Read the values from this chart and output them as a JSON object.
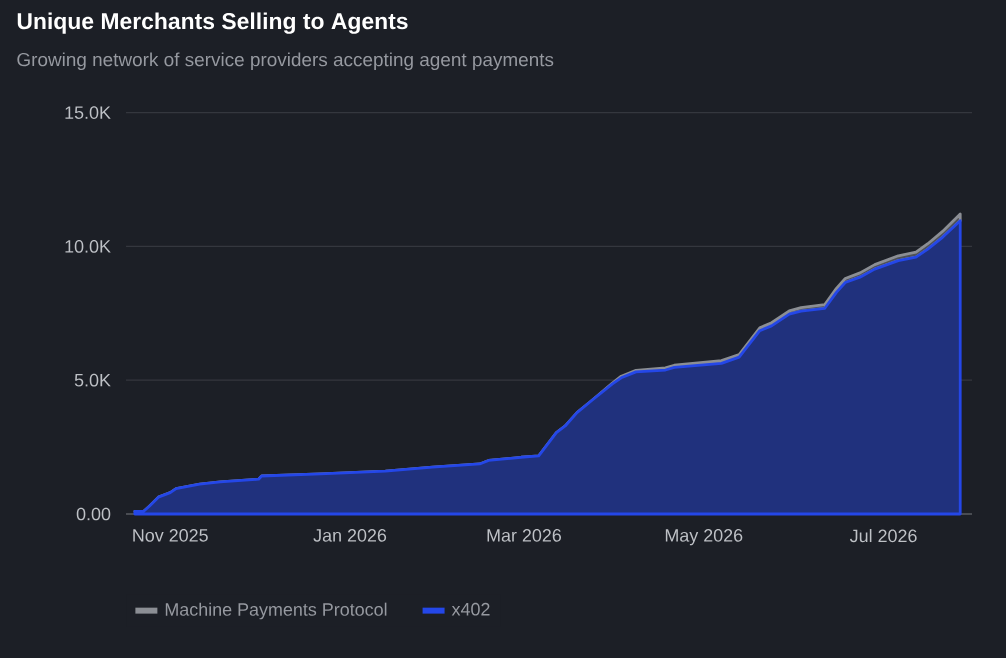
{
  "chart_data": {
    "type": "area",
    "stacked": true,
    "title": "Unique Merchants Selling to Agents",
    "subtitle": "Growing network of service providers accepting agent payments",
    "x": [
      "2025-10-20",
      "2025-10-23",
      "2025-10-25",
      "2025-10-28",
      "2025-11-01",
      "2025-11-03",
      "2025-11-11",
      "2025-11-18",
      "2025-12-01",
      "2025-12-02",
      "2025-12-22",
      "2026-01-13",
      "2026-01-29",
      "2026-02-14",
      "2026-02-17",
      "2026-02-28",
      "2026-03-06",
      "2026-03-12",
      "2026-03-15",
      "2026-03-19",
      "2026-03-24",
      "2026-03-31",
      "2026-04-03",
      "2026-04-08",
      "2026-04-18",
      "2026-04-21",
      "2026-05-07",
      "2026-05-13",
      "2026-05-20",
      "2026-05-24",
      "2026-05-30",
      "2026-06-03",
      "2026-06-11",
      "2026-06-15",
      "2026-06-18",
      "2026-06-23",
      "2026-06-28",
      "2026-07-06",
      "2026-07-12",
      "2026-07-16",
      "2026-07-21",
      "2026-07-27"
    ],
    "series": [
      {
        "name": "x402",
        "color": "#2447e8",
        "values": [
          100,
          100,
          300,
          630,
          800,
          950,
          1120,
          1200,
          1300,
          1420,
          1500,
          1600,
          1750,
          1870,
          2000,
          2120,
          2170,
          3040,
          3290,
          3790,
          4240,
          4860,
          5090,
          5310,
          5380,
          5480,
          5630,
          5860,
          6850,
          7030,
          7470,
          7580,
          7680,
          8280,
          8650,
          8850,
          9150,
          9470,
          9600,
          9900,
          10340,
          10960
        ]
      },
      {
        "name": "Machine Payments Protocol",
        "color": "#8b8e94",
        "values": [
          0,
          0,
          0,
          0,
          0,
          0,
          0,
          0,
          0,
          0,
          0,
          0,
          0,
          0,
          0,
          0,
          0,
          0,
          0,
          0,
          0,
          30,
          60,
          60,
          80,
          80,
          100,
          100,
          110,
          120,
          120,
          130,
          140,
          150,
          150,
          160,
          170,
          180,
          190,
          200,
          220,
          250
        ]
      }
    ],
    "xlim": [
      "2025-10-17",
      "2026-07-31"
    ],
    "xticks": [
      {
        "value": "2025-11-01",
        "label": "Nov 2025"
      },
      {
        "value": "2026-01-01",
        "label": "Jan 2026"
      },
      {
        "value": "2026-03-01",
        "label": "Mar 2026"
      },
      {
        "value": "2026-05-01",
        "label": "May 2026"
      },
      {
        "value": "2026-07-01",
        "label": "Jul 2026"
      }
    ],
    "ylim": [
      0,
      15000
    ],
    "yticks": [
      {
        "value": 0,
        "label": "0.00"
      },
      {
        "value": 5000,
        "label": "5.0K"
      },
      {
        "value": 10000,
        "label": "10.0K"
      },
      {
        "value": 15000,
        "label": "15.0K"
      }
    ],
    "grid": "y",
    "legend": "bottom left"
  }
}
